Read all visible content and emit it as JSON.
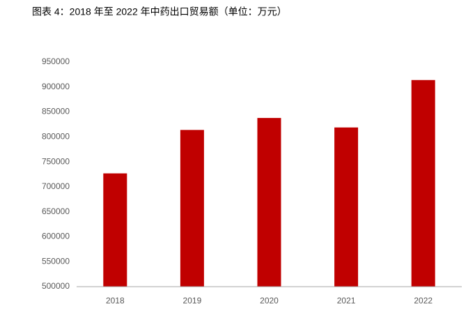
{
  "chart_data": {
    "type": "bar",
    "title": "图表 4：2018 年至 2022 年中药出口贸易额（单位：万元）",
    "categories": [
      "2018",
      "2019",
      "2020",
      "2021",
      "2022"
    ],
    "values": [
      727000,
      814000,
      838000,
      819000,
      914000
    ],
    "color": "#c00000",
    "ylim": [
      500000,
      950000
    ],
    "yticks": [
      500000,
      550000,
      600000,
      650000,
      700000,
      750000,
      800000,
      850000,
      900000,
      950000
    ],
    "grid": false
  }
}
